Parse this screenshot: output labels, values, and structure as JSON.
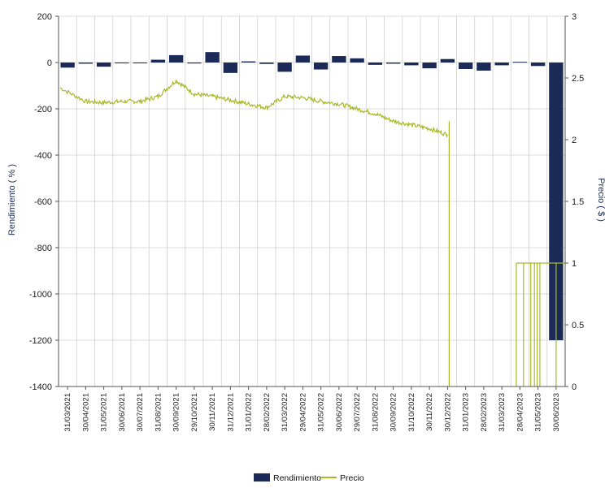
{
  "chart_data": {
    "type": "bar+line",
    "ylabel_left": "Rendimiento  ( % )",
    "ylabel_right": "Precio  ( $ )",
    "y_left_ticks": [
      200,
      0,
      -200,
      -400,
      -600,
      -800,
      -1000,
      -1200,
      -1400
    ],
    "y_left_range": [
      -1400,
      200
    ],
    "y_right_ticks": [
      "3",
      "2.5",
      "2",
      "1.5",
      "1",
      "0.5",
      "0"
    ],
    "y_right_range": [
      0,
      3
    ],
    "grid": true,
    "legend_position": "bottom",
    "categories": [
      "31/03/2021",
      "30/04/2021",
      "31/05/2021",
      "30/06/2021",
      "30/07/2021",
      "31/08/2021",
      "30/09/2021",
      "29/10/2021",
      "30/11/2021",
      "31/12/2021",
      "31/01/2022",
      "28/02/2022",
      "31/03/2022",
      "29/04/2022",
      "31/05/2022",
      "30/06/2022",
      "29/07/2022",
      "31/08/2022",
      "30/09/2022",
      "31/10/2022",
      "30/11/2022",
      "30/12/2022",
      "31/01/2023",
      "28/02/2023",
      "31/03/2023",
      "28/04/2023",
      "31/05/2023",
      "30/06/2023"
    ],
    "series": [
      {
        "name": "Rendimiento",
        "type": "bar",
        "color": "#1b2a57",
        "values": [
          -22,
          -5,
          -18,
          -3,
          -2,
          12,
          32,
          -4,
          45,
          -45,
          5,
          -6,
          -40,
          30,
          -30,
          28,
          18,
          -10,
          -5,
          -12,
          -25,
          15,
          -28,
          -35,
          -12,
          3,
          -15,
          -1200
        ]
      },
      {
        "name": "Precio",
        "type": "line",
        "color": "#a8b92a",
        "x": [
          "31/03/2021",
          "30/04/2021",
          "31/05/2021",
          "30/06/2021",
          "30/07/2021",
          "31/08/2021",
          "30/09/2021",
          "29/10/2021",
          "30/11/2021",
          "31/12/2021",
          "31/01/2022",
          "28/02/2022",
          "31/03/2022",
          "29/04/2022",
          "31/05/2022",
          "30/06/2022",
          "29/07/2022",
          "31/08/2022",
          "30/09/2022",
          "31/10/2022",
          "30/11/2022",
          "30/12/2022"
        ],
        "values": [
          2.42,
          2.31,
          2.3,
          2.31,
          2.31,
          2.35,
          2.48,
          2.37,
          2.35,
          2.32,
          2.29,
          2.26,
          2.35,
          2.34,
          2.31,
          2.29,
          2.25,
          2.21,
          2.15,
          2.12,
          2.09,
          2.04
        ]
      }
    ]
  },
  "legend": {
    "bar_label": "Rendimiento",
    "line_label": "Precio"
  }
}
